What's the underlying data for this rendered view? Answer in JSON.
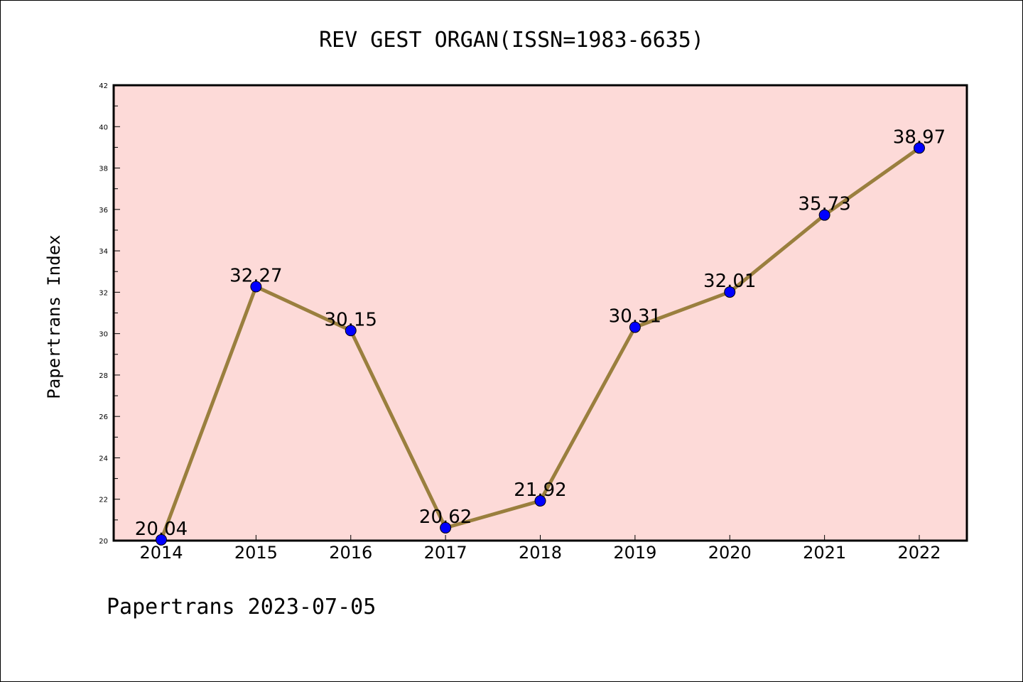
{
  "footer": "Papertrans 2023-07-05",
  "chart_data": {
    "type": "line",
    "title": "REV GEST ORGAN(ISSN=1983-6635)",
    "xlabel": "",
    "ylabel": "Papertrans Index",
    "categories": [
      "2014",
      "2015",
      "2016",
      "2017",
      "2018",
      "2019",
      "2020",
      "2021",
      "2022"
    ],
    "series": [
      {
        "values": [
          20.04,
          32.27,
          30.15,
          20.62,
          21.92,
          30.31,
          32.01,
          35.73,
          38.97
        ],
        "labels": [
          "20.04",
          "32.27",
          "30.15",
          "20.62",
          "21.92",
          "30.31",
          "32.01",
          "35.73",
          "38.97"
        ]
      }
    ],
    "ylim": [
      20,
      42
    ],
    "yticks": [
      "20",
      "22",
      "24",
      "26",
      "28",
      "30",
      "32",
      "34",
      "36",
      "38",
      "40",
      "42"
    ],
    "grid": false,
    "legend": "none",
    "colors": {
      "plot_background": "#fddad8",
      "line": "#9a7f3e",
      "marker": "#0000ff",
      "axis": "#000000"
    }
  }
}
